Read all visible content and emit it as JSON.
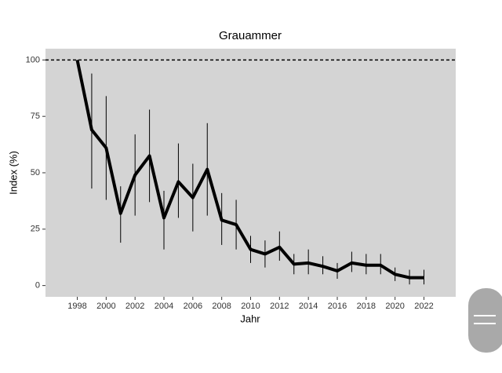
{
  "chart_data": {
    "type": "line",
    "title": "Grauammer",
    "xlabel": "Jahr",
    "ylabel": "Index (%)",
    "x": [
      1998,
      1999,
      2000,
      2001,
      2002,
      2003,
      2004,
      2005,
      2006,
      2007,
      2008,
      2009,
      2010,
      2011,
      2012,
      2013,
      2014,
      2015,
      2016,
      2017,
      2018,
      2019,
      2020,
      2021,
      2022
    ],
    "series": [
      {
        "color": "#000000",
        "values": [
          100,
          69,
          61,
          32,
          49,
          57.5,
          30,
          46,
          39,
          51.5,
          29,
          27,
          16,
          14,
          17,
          9.5,
          10,
          8.5,
          6.5,
          10,
          9,
          9,
          5,
          3.5,
          3.5
        ],
        "lower": [
          null,
          43,
          38,
          19,
          31,
          37,
          16,
          30,
          24,
          31,
          18,
          16,
          10,
          8,
          11,
          5,
          5,
          5,
          3,
          6,
          5,
          5,
          2,
          0.5,
          0.5
        ],
        "upper": [
          null,
          94,
          84,
          44,
          67,
          78,
          42,
          63,
          54,
          72,
          41,
          38,
          22,
          20,
          24,
          14,
          16,
          13,
          10,
          15,
          14,
          14,
          8,
          7,
          7
        ]
      }
    ],
    "xlim": [
      1995.8,
      2024.2
    ],
    "ylim": [
      -5,
      105
    ],
    "xticks": [
      1998,
      2000,
      2002,
      2004,
      2006,
      2008,
      2010,
      2012,
      2014,
      2016,
      2018,
      2020,
      2022
    ],
    "yticks": [
      0,
      25,
      50,
      75,
      100
    ],
    "reference_line": 100,
    "panel_color": "#d4d4d4"
  }
}
